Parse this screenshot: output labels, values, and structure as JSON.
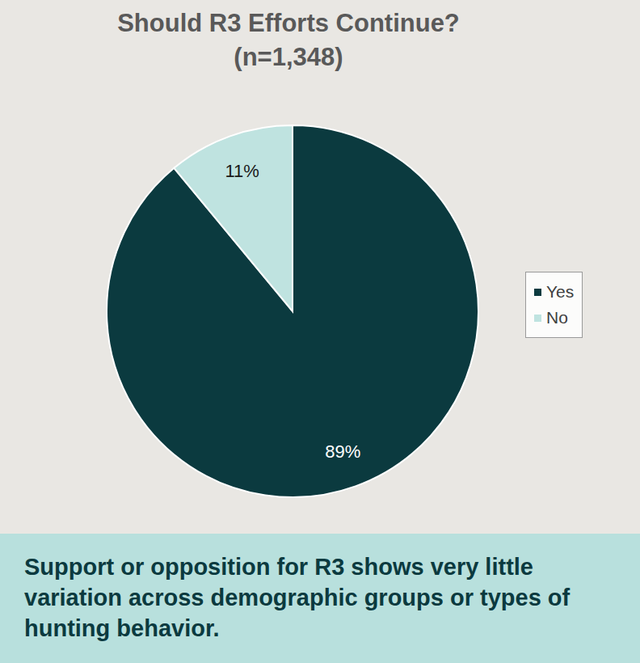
{
  "chart_data": {
    "type": "pie",
    "title": "Should R3 Efforts Continue?",
    "subtitle": "(n=1,348)",
    "categories": [
      "Yes",
      "No"
    ],
    "values": [
      89,
      11
    ],
    "value_labels": [
      "89%",
      "11%"
    ],
    "colors": [
      "#0b3a3f",
      "#bfe3e0"
    ],
    "legend": "right",
    "data_labels": true,
    "annotation": "Support or opposition for R3 shows very little variation across demographic groups or types of hunting behavior."
  }
}
